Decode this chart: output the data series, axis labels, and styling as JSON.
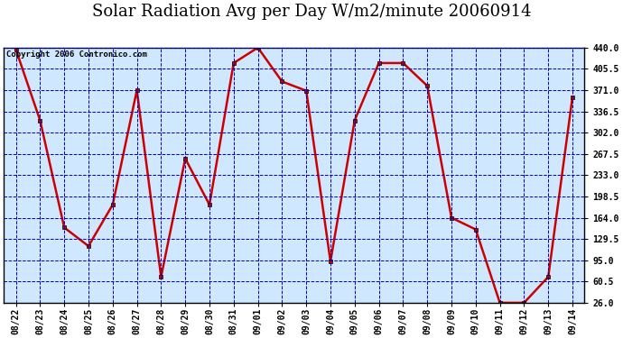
{
  "title": "Solar Radiation Avg per Day W/m2/minute 20060914",
  "copyright": "Copyright 2006 Contronico.com",
  "labels": [
    "08/22",
    "08/23",
    "08/24",
    "08/25",
    "08/26",
    "08/27",
    "08/28",
    "08/29",
    "08/30",
    "08/31",
    "09/01",
    "09/02",
    "09/03",
    "09/04",
    "09/05",
    "09/06",
    "09/07",
    "09/08",
    "09/09",
    "09/10",
    "09/11",
    "09/12",
    "09/13",
    "09/14"
  ],
  "values": [
    437,
    322,
    148,
    118,
    185,
    371,
    68,
    260,
    185,
    415,
    440,
    385,
    370,
    93,
    322,
    415,
    415,
    378,
    164,
    145,
    26,
    26,
    68,
    360
  ],
  "ylim": [
    26.0,
    440.0
  ],
  "yticks": [
    26.0,
    60.5,
    95.0,
    129.5,
    164.0,
    198.5,
    233.0,
    267.5,
    302.0,
    336.5,
    371.0,
    405.5,
    440.0
  ],
  "line_color": "#cc0000",
  "marker_color": "#cc0000",
  "bg_color": "#d0e8ff",
  "grid_color": "#0000bb",
  "title_fontsize": 13,
  "copyright_fontsize": 6.5,
  "outer_bg": "#ffffff"
}
